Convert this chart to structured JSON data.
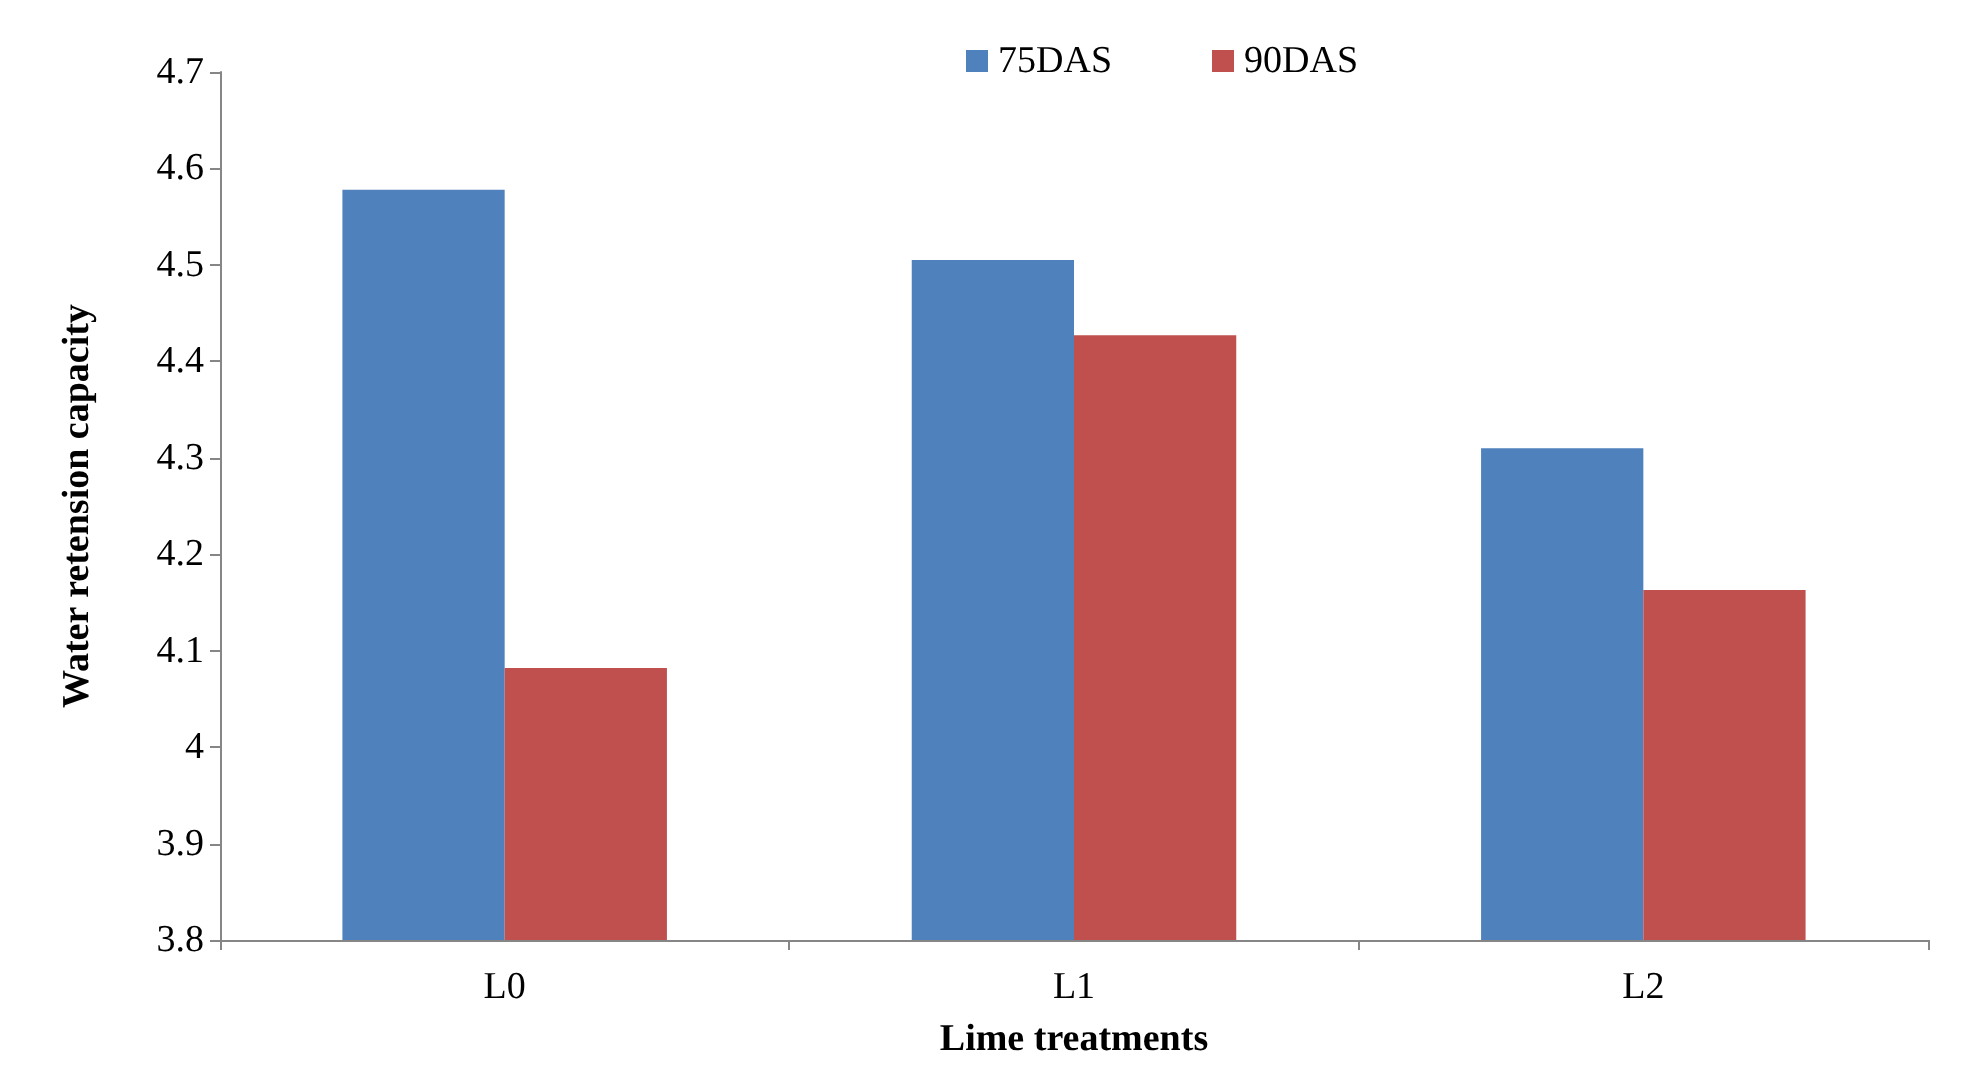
{
  "chart_data": {
    "type": "bar",
    "xlabel": "Lime treatments",
    "ylabel": "Water retension capacity",
    "categories": [
      "L0",
      "L1",
      "L2"
    ],
    "series": [
      {
        "name": "75DAS",
        "color": "#4f81bd",
        "values": [
          4.578,
          4.505,
          4.31
        ]
      },
      {
        "name": "90DAS",
        "color": "#c0504d",
        "values": [
          4.082,
          4.427,
          4.163
        ]
      }
    ],
    "ylim": [
      3.8,
      4.7
    ],
    "yticks": [
      3.8,
      3.9,
      4,
      4.1,
      4.2,
      4.3,
      4.4,
      4.5,
      4.6,
      4.7
    ],
    "grid": false,
    "legend": "top"
  }
}
